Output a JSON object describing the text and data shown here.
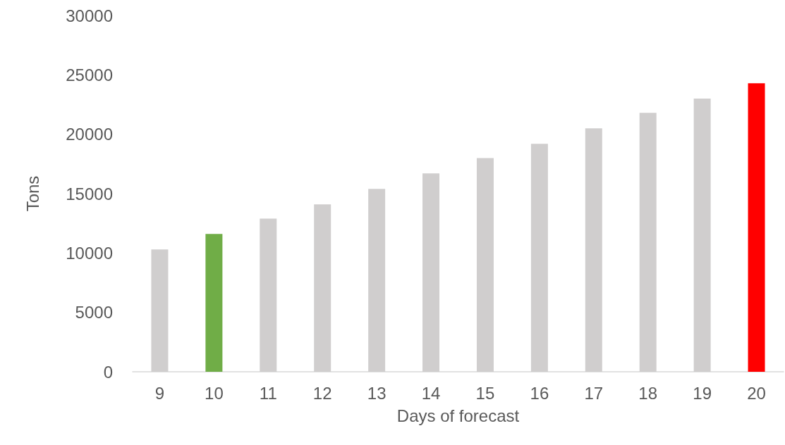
{
  "chart_data": {
    "type": "bar",
    "xlabel": "Days of forecast",
    "ylabel": "Tons",
    "categories": [
      "9",
      "10",
      "11",
      "12",
      "13",
      "14",
      "15",
      "16",
      "17",
      "18",
      "19",
      "20"
    ],
    "values": [
      10300,
      11600,
      12900,
      14100,
      15400,
      16700,
      18000,
      19200,
      20500,
      21800,
      23000,
      24300
    ],
    "colors": [
      "#d0cece",
      "#70ad47",
      "#d0cece",
      "#d0cece",
      "#d0cece",
      "#d0cece",
      "#d0cece",
      "#d0cece",
      "#d0cece",
      "#d0cece",
      "#d0cece",
      "#ff0000"
    ],
    "ylim": [
      0,
      30000
    ],
    "yticks": [
      0,
      5000,
      10000,
      15000,
      20000,
      25000,
      30000
    ]
  }
}
